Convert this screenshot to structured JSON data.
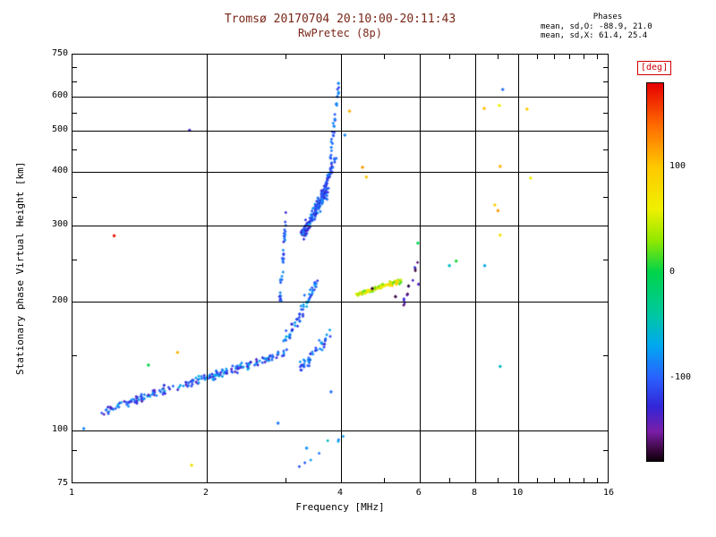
{
  "chart_data": {
    "type": "scatter",
    "title": "Tromsø 20170704 20:10:00-20:11:43",
    "subtitle": "RwPretec (8p)",
    "title_color": "#7a2618",
    "xlabel": "Frequency [MHz]",
    "ylabel": "Stationary phase Virtual Height [km]",
    "x_scale": "log",
    "y_scale": "log",
    "xlim": [
      1,
      16
    ],
    "ylim": [
      75,
      750
    ],
    "x_gridlines": [
      2,
      4,
      6,
      8,
      10
    ],
    "x_ticklabels": [
      1,
      2,
      4,
      6,
      8,
      10,
      16
    ],
    "x_minor_ticks": [
      3,
      5,
      7,
      9,
      11,
      12,
      13,
      14,
      15
    ],
    "y_gridlines": [
      100,
      200,
      300,
      400,
      500,
      600
    ],
    "y_ticklabels": [
      75,
      100,
      200,
      300,
      400,
      500,
      600,
      750
    ],
    "y_minor_ticks": [
      90,
      150,
      250,
      350,
      450,
      550,
      650,
      700
    ],
    "annotation": {
      "heading": "Phases",
      "line_o": "mean, sd,O: -88.9, 21.0",
      "line_x": "mean, sd,X:  61.4, 25.4"
    },
    "colorbar": {
      "label": "[deg]",
      "vmin": -180,
      "vmax": 180,
      "ticks": [
        100,
        0,
        -100
      ],
      "stops": [
        [
          180,
          "#e60000"
        ],
        [
          140,
          "#ff6a00"
        ],
        [
          100,
          "#ffc800"
        ],
        [
          60,
          "#f0f000"
        ],
        [
          30,
          "#90e800"
        ],
        [
          0,
          "#00d44a"
        ],
        [
          -40,
          "#00c8a0"
        ],
        [
          -70,
          "#00a8f0"
        ],
        [
          -100,
          "#2962ff"
        ],
        [
          -128,
          "#3226d8"
        ],
        [
          -152,
          "#7a1ea8"
        ],
        [
          -170,
          "#38063c"
        ],
        [
          -180,
          "#0c000a"
        ]
      ]
    },
    "clusters": [
      {
        "name": "sporadic-e-blob",
        "n": 75,
        "f": [
          1.17,
          1.68
        ],
        "h": [
          110,
          127
        ],
        "jf": 0.05,
        "jh": 0.04,
        "phase": [
          -150,
          -60
        ]
      },
      {
        "name": "e-trace",
        "n": 130,
        "f": [
          1.72,
          3.0
        ],
        "h": [
          126,
          152
        ],
        "jf": 0.03,
        "jh": 0.035,
        "phase": [
          -140,
          -60
        ]
      },
      {
        "name": "valley",
        "n": 45,
        "f": [
          3.25,
          3.8
        ],
        "h": [
          140,
          168
        ],
        "jf": 0.025,
        "jh": 0.045,
        "phase": [
          -130,
          -70
        ]
      },
      {
        "name": "f-rise",
        "n": 60,
        "f": [
          3.0,
          3.55
        ],
        "h": [
          160,
          225
        ],
        "jf": 0.02,
        "jh": 0.05,
        "phase": [
          -130,
          -60
        ]
      },
      {
        "name": "string-3mhz",
        "n": 35,
        "f": [
          2.92,
          3.02
        ],
        "h": [
          200,
          330
        ],
        "jf": 0.012,
        "jh": 0.05,
        "phase": [
          -130,
          -80
        ]
      },
      {
        "name": "f-bend",
        "n": 150,
        "f": [
          3.28,
          3.72
        ],
        "h": [
          285,
          362
        ],
        "jf": 0.025,
        "jh": 0.045,
        "phase": [
          -140,
          -70
        ]
      },
      {
        "name": "f-steep",
        "n": 55,
        "f": [
          3.62,
          3.88
        ],
        "h": [
          350,
          430
        ],
        "jf": 0.012,
        "jh": 0.04,
        "phase": [
          -130,
          -80
        ]
      },
      {
        "name": "f-asymptote",
        "n": 32,
        "f": [
          3.78,
          3.96
        ],
        "h": [
          430,
          645
        ],
        "jf": 0.008,
        "jh": 0.05,
        "phase": [
          -120,
          -75
        ]
      },
      {
        "name": "x-mode-green",
        "n": 100,
        "f": [
          4.35,
          5.45
        ],
        "h": [
          207,
          223
        ],
        "jf": 0.02,
        "jh": 0.02,
        "phase": [
          15,
          95
        ]
      },
      {
        "name": "dark-purple",
        "n": 14,
        "f": [
          5.5,
          5.95
        ],
        "h": [
          195,
          245
        ],
        "jf": 0.012,
        "jh": 0.05,
        "phase": [
          -175,
          -120
        ]
      },
      {
        "name": "bottom-sparse",
        "n": 8,
        "f": [
          3.2,
          4.0
        ],
        "h": [
          82,
          100
        ],
        "jf": 0.05,
        "jh": 0.05,
        "phase": [
          -120,
          -50
        ]
      }
    ],
    "points": [
      [
        1.06,
        101,
        -85
      ],
      [
        1.24,
        284,
        175
      ],
      [
        1.48,
        142,
        0
      ],
      [
        1.72,
        152,
        110
      ],
      [
        1.83,
        500,
        -135
      ],
      [
        1.85,
        83,
        75
      ],
      [
        2.89,
        104,
        -90
      ],
      [
        3.35,
        91,
        -80
      ],
      [
        3.8,
        123,
        -95
      ],
      [
        4.08,
        487,
        -85
      ],
      [
        4.18,
        554,
        110
      ],
      [
        4.47,
        410,
        120
      ],
      [
        4.56,
        389,
        100
      ],
      [
        4.7,
        214,
        -170
      ],
      [
        5.3,
        205,
        -168
      ],
      [
        5.95,
        273,
        -5
      ],
      [
        5.97,
        219,
        -140
      ],
      [
        7.0,
        242,
        -55
      ],
      [
        7.25,
        248,
        5
      ],
      [
        8.4,
        242,
        -70
      ],
      [
        8.38,
        562,
        105
      ],
      [
        9.06,
        571,
        60
      ],
      [
        9.22,
        622,
        -95
      ],
      [
        9.1,
        412,
        110
      ],
      [
        8.85,
        335,
        95
      ],
      [
        9.0,
        325,
        120
      ],
      [
        9.1,
        285,
        70
      ],
      [
        9.1,
        141,
        -55
      ],
      [
        10.65,
        387,
        60
      ],
      [
        10.45,
        560,
        100
      ]
    ]
  }
}
